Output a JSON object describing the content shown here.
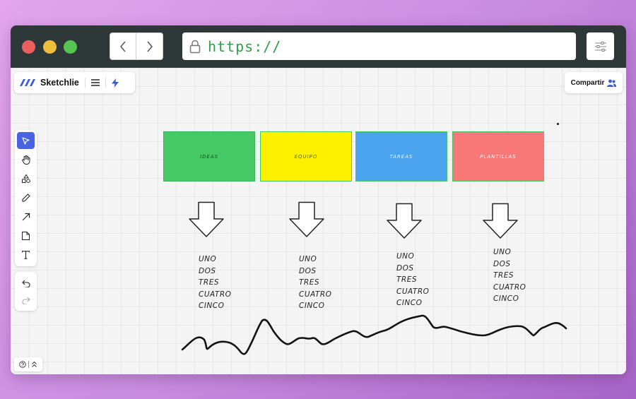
{
  "browser": {
    "url": "https://",
    "traffic_lights": [
      "#ec5f5d",
      "#f1bd3f",
      "#56c451"
    ]
  },
  "app": {
    "name": "Sketchlie",
    "share_label": "Compartir",
    "accent": "#4a63e0"
  },
  "tools": [
    "select-icon",
    "hand-icon",
    "shapes-icon",
    "pencil-icon",
    "arrow-icon",
    "sticky-note-icon",
    "text-icon"
  ],
  "history": [
    "undo-icon",
    "redo-icon"
  ],
  "help": {
    "icon": "help-icon",
    "expand_icon": "chevron-up-icon"
  },
  "board": {
    "cards": [
      {
        "label": "IDEAS",
        "color": "#44c964"
      },
      {
        "label": "EQUIPO",
        "color": "#fff000"
      },
      {
        "label": "TAREAS",
        "color": "#4ba3ee"
      },
      {
        "label": "PLANTILLAS",
        "color": "#f87877"
      }
    ],
    "lists": [
      {
        "items": [
          "UNO",
          "DOS",
          "TRES",
          "CUATRO",
          "CINCO"
        ]
      },
      {
        "items": [
          "UNO",
          "DOS",
          "TRES",
          "CUATRO",
          "CINCO"
        ]
      },
      {
        "items": [
          "UNO",
          "DOS",
          "TRES",
          "CUATRO",
          "CINCO"
        ]
      },
      {
        "items": [
          "UNO",
          "DOS",
          "TRES",
          "CUATRO",
          "CINCO"
        ]
      }
    ]
  }
}
